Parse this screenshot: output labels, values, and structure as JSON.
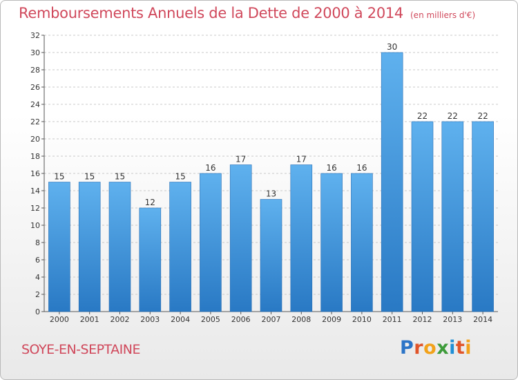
{
  "title": "Remboursements Annuels de la Dette de 2000 à 2014",
  "unit_label": "(en milliers d'€)",
  "location": "SOYE-EN-SEPTAINE",
  "brand": {
    "name": "Proxiti",
    "letters": [
      "P",
      "r",
      "o",
      "x",
      "i",
      "t",
      "i"
    ],
    "colors": [
      "#2b74c7",
      "#e0552a",
      "#f2a21b",
      "#3d9b3a",
      "#1f8fd6",
      "#e0552a",
      "#f2a21b"
    ]
  },
  "colors": {
    "title": "#d0485b",
    "bar_top": "#5fb1ee",
    "bar_bottom": "#2979c4",
    "grid": "#c8c8c8"
  },
  "chart_data": {
    "type": "bar",
    "title": "Remboursements Annuels de la Dette de 2000 à 2014",
    "xlabel": "",
    "ylabel": "",
    "ylim": [
      0,
      32
    ],
    "yticks": [
      0,
      2,
      4,
      6,
      8,
      10,
      12,
      14,
      16,
      18,
      20,
      22,
      24,
      26,
      28,
      30,
      32
    ],
    "grid": "horizontal dashed",
    "categories": [
      "2000",
      "2001",
      "2002",
      "2003",
      "2004",
      "2005",
      "2006",
      "2007",
      "2008",
      "2009",
      "2010",
      "2011",
      "2012",
      "2013",
      "2014"
    ],
    "values": [
      15,
      15,
      15,
      12,
      15,
      16,
      17,
      13,
      17,
      16,
      16,
      30,
      22,
      22,
      22
    ]
  }
}
